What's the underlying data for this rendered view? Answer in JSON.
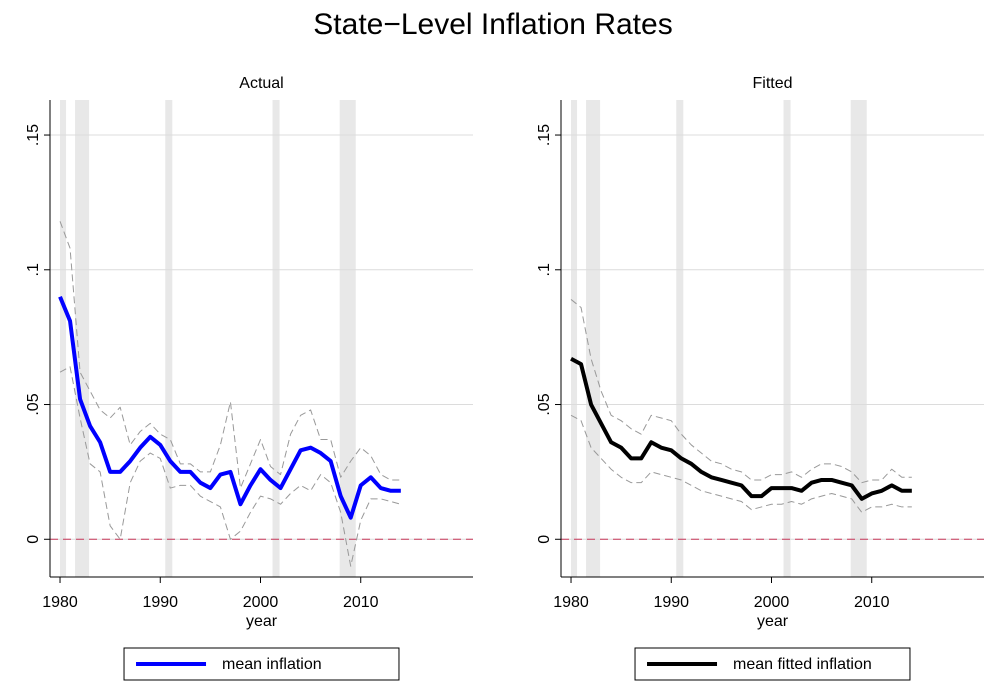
{
  "title": "State−Level Inflation Rates",
  "chart_data": [
    {
      "type": "line",
      "title": "Actual",
      "xlabel": "year",
      "legend": "bottom",
      "x": [
        1980,
        1981,
        1982,
        1983,
        1984,
        1985,
        1986,
        1987,
        1988,
        1989,
        1990,
        1991,
        1992,
        1993,
        1994,
        1995,
        1996,
        1997,
        1998,
        1999,
        2000,
        2001,
        2002,
        2003,
        2004,
        2005,
        2006,
        2007,
        2008,
        2009,
        2010,
        2011,
        2012,
        2013,
        2014
      ],
      "series": [
        {
          "name": "mean inflation",
          "color": "#0000ff",
          "width": 4,
          "values": [
            0.09,
            0.081,
            0.052,
            0.042,
            0.036,
            0.025,
            0.025,
            0.029,
            0.034,
            0.038,
            0.035,
            0.029,
            0.025,
            0.025,
            0.021,
            0.019,
            0.024,
            0.025,
            0.013,
            0.02,
            0.026,
            0.022,
            0.019,
            0.026,
            0.033,
            0.034,
            0.032,
            0.029,
            0.016,
            0.008,
            0.02,
            0.023,
            0.019,
            0.018,
            0.018
          ]
        },
        {
          "color": "#999999",
          "dashed": true,
          "width": 1,
          "values": [
            0.118,
            0.108,
            0.062,
            0.055,
            0.048,
            0.045,
            0.049,
            0.035,
            0.04,
            0.043,
            0.039,
            0.037,
            0.028,
            0.028,
            0.025,
            0.025,
            0.035,
            0.051,
            0.019,
            0.028,
            0.037,
            0.027,
            0.024,
            0.039,
            0.046,
            0.048,
            0.037,
            0.037,
            0.023,
            0.029,
            0.034,
            0.031,
            0.024,
            0.022,
            0.022
          ]
        },
        {
          "color": "#999999",
          "dashed": true,
          "width": 1,
          "values": [
            0.062,
            0.064,
            0.045,
            0.028,
            0.025,
            0.005,
            0.0,
            0.021,
            0.029,
            0.032,
            0.03,
            0.019,
            0.02,
            0.02,
            0.016,
            0.014,
            0.012,
            0.0,
            0.003,
            0.01,
            0.016,
            0.015,
            0.013,
            0.017,
            0.02,
            0.018,
            0.024,
            0.021,
            0.01,
            -0.01,
            0.007,
            0.015,
            0.015,
            0.014,
            0.013
          ]
        }
      ],
      "shaded_periods": [
        [
          1980,
          1980.6
        ],
        [
          1981.5,
          1982.9
        ],
        [
          1990.5,
          1991.2
        ],
        [
          2001.2,
          2001.9
        ],
        [
          2007.9,
          2009.5
        ]
      ],
      "hline": 0,
      "hline_color": "#c8385a",
      "xlim": [
        1979,
        2021.2
      ],
      "xticks": [
        1980,
        1990,
        2000,
        2010
      ],
      "ylim": [
        -0.014,
        0.163
      ],
      "yticks": [
        0,
        {
          "value": 0.05,
          "label": ".05"
        },
        {
          "value": 0.1,
          "label": ".1"
        },
        {
          "value": 0.15,
          "label": ".15"
        }
      ],
      "grid": true
    },
    {
      "type": "line",
      "title": "Fitted",
      "xlabel": "year",
      "legend": "bottom",
      "x": [
        1980,
        1981,
        1982,
        1983,
        1984,
        1985,
        1986,
        1987,
        1988,
        1989,
        1990,
        1991,
        1992,
        1993,
        1994,
        1995,
        1996,
        1997,
        1998,
        1999,
        2000,
        2001,
        2002,
        2003,
        2004,
        2005,
        2006,
        2007,
        2008,
        2009,
        2010,
        2011,
        2012,
        2013,
        2014
      ],
      "series": [
        {
          "name": "mean fitted inflation",
          "color": "#000000",
          "width": 4,
          "values": [
            0.067,
            0.065,
            0.05,
            0.043,
            0.036,
            0.034,
            0.03,
            0.03,
            0.036,
            0.034,
            0.033,
            0.03,
            0.028,
            0.025,
            0.023,
            0.022,
            0.021,
            0.02,
            0.016,
            0.016,
            0.019,
            0.019,
            0.019,
            0.018,
            0.021,
            0.022,
            0.022,
            0.021,
            0.02,
            0.015,
            0.017,
            0.018,
            0.02,
            0.018,
            0.018
          ]
        },
        {
          "color": "#999999",
          "dashed": true,
          "width": 1,
          "values": [
            0.089,
            0.086,
            0.067,
            0.055,
            0.046,
            0.044,
            0.041,
            0.039,
            0.046,
            0.045,
            0.044,
            0.039,
            0.035,
            0.032,
            0.029,
            0.028,
            0.026,
            0.025,
            0.022,
            0.022,
            0.024,
            0.024,
            0.025,
            0.023,
            0.026,
            0.028,
            0.028,
            0.027,
            0.025,
            0.021,
            0.022,
            0.022,
            0.026,
            0.023,
            0.023
          ]
        },
        {
          "color": "#999999",
          "dashed": true,
          "width": 1,
          "values": [
            0.046,
            0.044,
            0.034,
            0.03,
            0.026,
            0.023,
            0.021,
            0.021,
            0.025,
            0.024,
            0.023,
            0.022,
            0.02,
            0.018,
            0.017,
            0.016,
            0.015,
            0.014,
            0.011,
            0.012,
            0.013,
            0.013,
            0.014,
            0.013,
            0.015,
            0.016,
            0.017,
            0.016,
            0.015,
            0.01,
            0.012,
            0.012,
            0.013,
            0.012,
            0.012
          ]
        }
      ],
      "shaded_periods": [
        [
          1980,
          1980.6
        ],
        [
          1981.5,
          1982.9
        ],
        [
          1990.5,
          1991.2
        ],
        [
          2001.2,
          2001.9
        ],
        [
          2007.9,
          2009.5
        ]
      ],
      "hline": 0,
      "hline_color": "#c8385a",
      "xlim": [
        1979,
        2021.2
      ],
      "xticks": [
        1980,
        1990,
        2000,
        2010
      ],
      "ylim": [
        -0.014,
        0.163
      ],
      "yticks": [
        0,
        {
          "value": 0.05,
          "label": ".05"
        },
        {
          "value": 0.1,
          "label": ".1"
        },
        {
          "value": 0.15,
          "label": ".15"
        }
      ],
      "grid": true
    }
  ]
}
